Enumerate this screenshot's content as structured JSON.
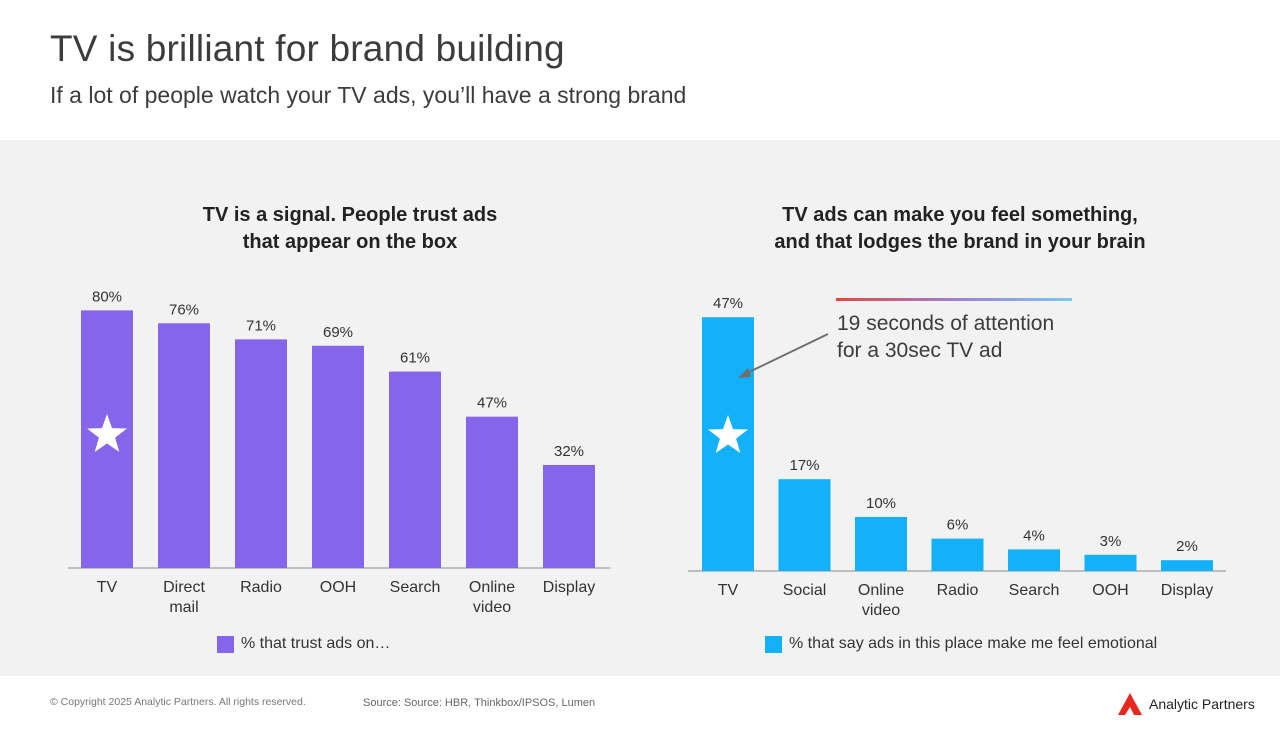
{
  "header": {
    "title": "TV is brilliant for brand building",
    "subtitle": "If a lot of people watch your TV ads, you’ll have a strong brand"
  },
  "chart_data": [
    {
      "type": "bar",
      "title_line1": "TV is a signal. People trust ads",
      "title_line2": "that appear on the box",
      "categories": [
        [
          "TV"
        ],
        [
          "Direct",
          "mail"
        ],
        [
          "Radio"
        ],
        [
          "OOH"
        ],
        [
          "Search"
        ],
        [
          "Online",
          "video"
        ],
        [
          "Display"
        ]
      ],
      "series": [
        {
          "name": "% that trust ads on…",
          "values": [
            80,
            76,
            71,
            69,
            61,
            47,
            32
          ]
        }
      ],
      "data_labels": [
        "80%",
        "76%",
        "71%",
        "69%",
        "61%",
        "47%",
        "32%"
      ],
      "color": "#8566ea",
      "highlight": "star on TV bar",
      "legend": "bottom-center"
    },
    {
      "type": "bar",
      "title_line1": "TV ads can make you feel something,",
      "title_line2": "and that lodges the brand in your brain",
      "categories": [
        [
          "TV"
        ],
        [
          "Social"
        ],
        [
          "Online",
          "video"
        ],
        [
          "Radio"
        ],
        [
          "Search"
        ],
        [
          "OOH"
        ],
        [
          "Display"
        ]
      ],
      "series": [
        {
          "name": "% that say ads in this place make me feel emotional",
          "values": [
            47,
            17,
            10,
            6,
            4,
            3,
            2
          ]
        }
      ],
      "data_labels": [
        "47%",
        "17%",
        "10%",
        "6%",
        "4%",
        "3%",
        "2%"
      ],
      "color": "#14b1fb",
      "highlight": "star on TV bar",
      "annotation_line1": "19 seconds of attention",
      "annotation_line2": "for a 30sec TV ad",
      "legend": "bottom-center"
    }
  ],
  "footer": {
    "copyright": "© Copyright 2025 Analytic Partners. All rights reserved.",
    "source": "Source: Source: HBR, Thinkbox/IPSOS, Lumen",
    "brand_name": "Analytic Partners"
  },
  "colors": {
    "left_bar": "#8566ea",
    "right_bar": "#14b1fb",
    "panel_bg": "#f2f2f2",
    "brand_mark": "#e8271f"
  }
}
